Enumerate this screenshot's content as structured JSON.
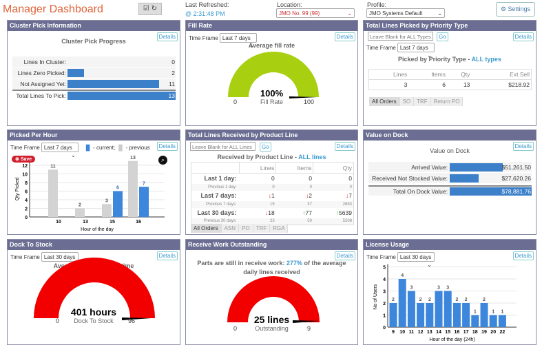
{
  "header": {
    "title": "Manager Dashboard",
    "last_refreshed_label": "Last Refreshed:",
    "last_refreshed_value": "@ 2:31:48 PM",
    "location_label": "Location:",
    "location_value": "JMO No. 99 (99)",
    "profile_label": "Profile:",
    "profile_value": "JMO Systems Default",
    "settings_label": "Settings",
    "icons": [
      "checkbox-icon",
      "refresh-icon",
      "gear-icon"
    ]
  },
  "common": {
    "details": "Details",
    "time_frame": "Time Frame",
    "go": "Go"
  },
  "cluster": {
    "title": "Cluster Pick Information",
    "subtitle": "Cluster Pick Progress",
    "rows": [
      {
        "label": "Lines In Cluster:",
        "value": "0",
        "fill": 0
      },
      {
        "label": "Lines Zero Picked:",
        "value": "2",
        "fill": 0.15
      },
      {
        "label": "Not Assigned Yet:",
        "value": "11",
        "fill": 0.85
      },
      {
        "label": "Total Lines To Pick:",
        "value": "13",
        "fill": 1
      }
    ]
  },
  "fill_rate": {
    "title": "Fill Rate",
    "time_frame": "Last 7 days",
    "subtitle": "Average fill rate",
    "value": "100%",
    "label": "Fill Rate",
    "min": "0",
    "max": "100",
    "level": 1,
    "color": "#a8d010"
  },
  "priority": {
    "title": "Total Lines Picked by Priority Type",
    "placeholder": "Leave Blank for ALL Types",
    "time_frame": "Last 7 days",
    "subtitle": "Picked by Priority Type - ",
    "subtitle_link": "ALL types",
    "headers": [
      "Lines",
      "Items",
      "Qty",
      "Ext Sell"
    ],
    "values": [
      "3",
      "6",
      "13",
      "$218.92"
    ],
    "tabs": [
      "All Orders",
      "SO",
      "TRF",
      "Return PO"
    ]
  },
  "picked_hour": {
    "title": "Picked Per Hour",
    "time_frame": "Last 7 days",
    "legend_current": "- current;",
    "legend_previous": "- previous",
    "save": "Save"
  },
  "received": {
    "title": "Total Lines Received by Product Line",
    "placeholder": "Leave Blank for ALL Lines",
    "subtitle": "Received by Product Line - ",
    "subtitle_link": "ALL lines",
    "headers": [
      "Lines",
      "Items",
      "Qty"
    ],
    "rows": [
      {
        "label": "Last 1 day:",
        "values": [
          "0",
          "0",
          "0"
        ],
        "dirs": [
          "",
          "",
          ""
        ],
        "prev_label": "Previous 1 day:",
        "prev": [
          "0",
          "0",
          "0"
        ]
      },
      {
        "label": "Last 7 days:",
        "values": [
          "1",
          "2",
          "7"
        ],
        "dirs": [
          "down",
          "down",
          "down"
        ],
        "prev_label": "Previous 7 days:",
        "prev": [
          "15",
          "37",
          "2683"
        ]
      },
      {
        "label": "Last 30 days:",
        "values": [
          "18",
          "77",
          "5639"
        ],
        "dirs": [
          "down",
          "up",
          "up"
        ],
        "prev_label": "Previous 30 days:",
        "prev": [
          "23",
          "50",
          "5208"
        ]
      }
    ],
    "tabs": [
      "All Orders",
      "ASN",
      "PO",
      "TRF",
      "RGA"
    ]
  },
  "dock_value": {
    "title": "Value on Dock",
    "subtitle": "Value on Dock",
    "rows": [
      {
        "label": "Arrived Value:",
        "value": "$51,261.50",
        "fill": 0.65
      },
      {
        "label": "Received Not Stocked Value:",
        "value": "$27,620.26",
        "fill": 0.35
      },
      {
        "label": "Total On Dock Value:",
        "value": "$78,881.76",
        "fill": 1
      }
    ]
  },
  "dock_stock": {
    "title": "Dock To Stock",
    "time_frame": "Last 30 days",
    "subtitle": "Average dock to stock time",
    "value": "401 hours",
    "label": "Dock To Stock",
    "min": "0",
    "max": "96",
    "level": 1,
    "color": "#f20000"
  },
  "receive_work": {
    "title": "Receive Work Outstanding",
    "text1": "Parts are still in receive work: ",
    "pct": "277%",
    "text2": " of the average",
    "text3": "daily lines received",
    "value": "25 lines",
    "label": "Outstanding",
    "min": "0",
    "max": "9",
    "level": 1,
    "color": "#f20000"
  },
  "license": {
    "title": "License Usage",
    "time_frame": "Last 30 days"
  },
  "chart_data": [
    {
      "type": "bar",
      "title": "",
      "xlabel": "Hour of the day",
      "ylabel": "Qty Picked",
      "categories": [
        "10",
        "13",
        "15",
        "16"
      ],
      "series": [
        {
          "name": "previous",
          "values": [
            11,
            2,
            3,
            13
          ],
          "color": "#d3d3d3"
        },
        {
          "name": "current",
          "values": [
            null,
            null,
            6,
            7
          ],
          "color": "#3c86dc"
        }
      ],
      "ylim": [
        0,
        13
      ],
      "yticks": [
        0,
        2,
        4,
        6,
        8,
        10,
        12
      ],
      "grid": true
    },
    {
      "type": "bar",
      "title": "",
      "xlabel": "Hour of the day (24h)",
      "ylabel": "No of Users",
      "categories": [
        "9",
        "10",
        "11",
        "12",
        "13",
        "14",
        "15",
        "16",
        "17",
        "18",
        "19",
        "20",
        "22"
      ],
      "values": [
        2,
        4,
        3,
        2,
        2,
        3,
        3,
        2,
        2,
        1,
        2,
        1,
        1
      ],
      "color": "#3c86dc",
      "ylim": [
        0,
        5
      ],
      "yticks": [
        0,
        1,
        2,
        3,
        4,
        5
      ],
      "grid": true
    }
  ]
}
